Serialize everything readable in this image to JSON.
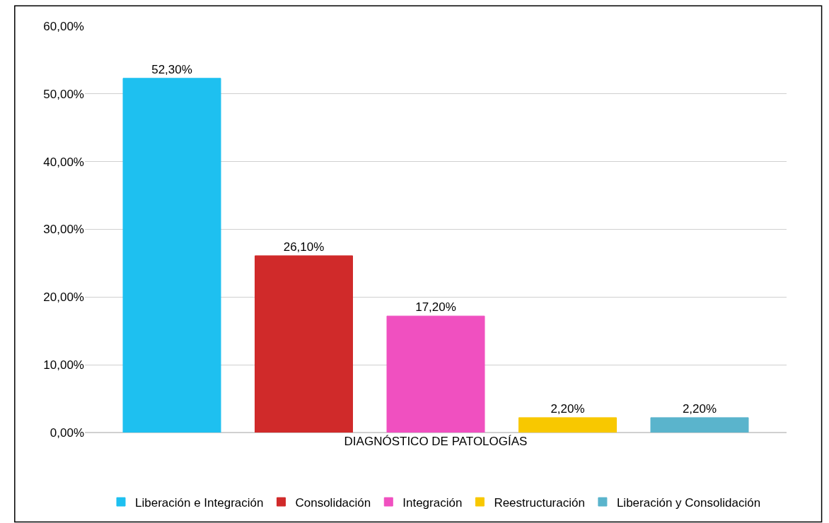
{
  "chart_data": {
    "type": "bar",
    "categories": [
      "DIAGNÓSTICO DE PATOLOGÍAS"
    ],
    "series": [
      {
        "name": "Liberación e Integración",
        "color": "#1ec0f0",
        "values": [
          52.3
        ],
        "value_labels": [
          "52,30%"
        ]
      },
      {
        "name": "Consolidación",
        "color": "#d02a2a",
        "values": [
          26.1
        ],
        "value_labels": [
          "26,10%"
        ]
      },
      {
        "name": "Integración",
        "color": "#f050c0",
        "values": [
          17.2
        ],
        "value_labels": [
          "17,20%"
        ]
      },
      {
        "name": "Reestructuración",
        "color": "#f8c800",
        "values": [
          2.2
        ],
        "value_labels": [
          "2,20%"
        ]
      },
      {
        "name": "Liberación y Consolidación",
        "color": "#5ab4cc",
        "values": [
          2.2
        ],
        "value_labels": [
          "2,20%"
        ]
      }
    ],
    "ylim": [
      0,
      60
    ],
    "yticks": [
      {
        "value": 0,
        "label": "0,00%"
      },
      {
        "value": 10,
        "label": "10,00%"
      },
      {
        "value": 20,
        "label": "20,00%"
      },
      {
        "value": 30,
        "label": "30,00%"
      },
      {
        "value": 40,
        "label": "40,00%"
      },
      {
        "value": 50,
        "label": "50,00%"
      },
      {
        "value": 60,
        "label": "60,00%"
      }
    ],
    "grid": "y",
    "legend": "bottom"
  }
}
